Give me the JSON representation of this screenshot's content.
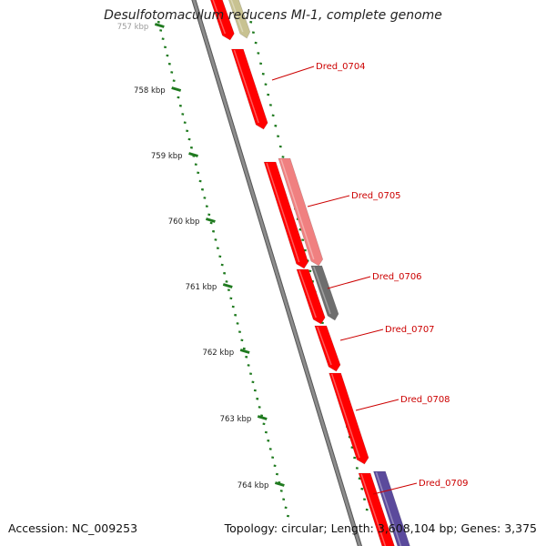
{
  "title": "Desulfotomaculum reducens MI-1, complete genome",
  "footer": {
    "accession": "Accession: NC_009253",
    "summary": "Topology: circular; Length: 3,608,104 bp; Genes: 3,375"
  },
  "scale": {
    "unit": "kbp",
    "labels": [
      {
        "kbp": 757,
        "text": "757 kbp",
        "faded": true
      },
      {
        "kbp": 758,
        "text": "758 kbp"
      },
      {
        "kbp": 759,
        "text": "759 kbp"
      },
      {
        "kbp": 760,
        "text": "760 kbp"
      },
      {
        "kbp": 761,
        "text": "761 kbp"
      },
      {
        "kbp": 762,
        "text": "762 kbp"
      },
      {
        "kbp": 763,
        "text": "763 kbp"
      },
      {
        "kbp": 764,
        "text": "764 kbp"
      }
    ]
  },
  "gene_labels": [
    {
      "id": "Dred_0704",
      "text": "Dred_0704"
    },
    {
      "id": "Dred_0705",
      "text": "Dred_0705"
    },
    {
      "id": "Dred_0706",
      "text": "Dred_0706"
    },
    {
      "id": "Dred_0707",
      "text": "Dred_0707"
    },
    {
      "id": "Dred_0708",
      "text": "Dred_0708"
    },
    {
      "id": "Dred_0709",
      "text": "Dred_0709"
    }
  ],
  "colors": {
    "gene_red": "#ff0000",
    "gene_pink": "#f08080",
    "gene_gray": "#6e6e6e",
    "gene_olive": "#c8c291",
    "gene_purple": "#5b4a9c",
    "backbone": "#8c8c8c",
    "scale_ticks": "#1f7a1f",
    "label_text": "#cc0000"
  }
}
